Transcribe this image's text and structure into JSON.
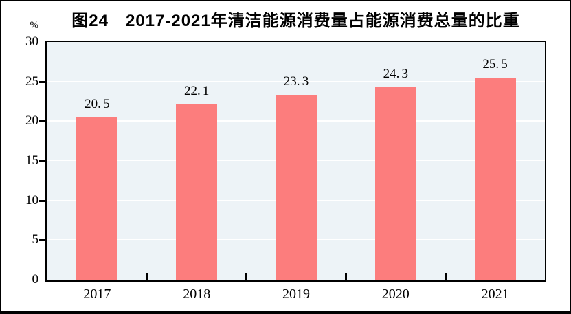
{
  "figure": {
    "title": "图24　2017-2021年清洁能源消费量占能源消费总量的比重"
  },
  "chart_data": {
    "type": "bar",
    "title": "图24　2017-2021年清洁能源消费量占能源消费总量的比重",
    "categories": [
      "2017",
      "2018",
      "2019",
      "2020",
      "2021"
    ],
    "values": [
      20.5,
      22.1,
      23.3,
      24.3,
      25.5
    ],
    "value_labels": [
      "20.5",
      "22.1",
      "23.3",
      "24.3",
      "25.5"
    ],
    "xlabel": "",
    "ylabel": "%",
    "ylim": [
      0,
      30
    ],
    "yticks": [
      0,
      5,
      10,
      15,
      20,
      25,
      30
    ],
    "grid": true,
    "legend": "none",
    "colors": {
      "bar": "#FC7D7D",
      "plot_background": "#EDF3F7",
      "gridline": "#FFFFFF",
      "axis": "#000000",
      "text": "#000000",
      "page_background": "#FFFFFF"
    }
  }
}
